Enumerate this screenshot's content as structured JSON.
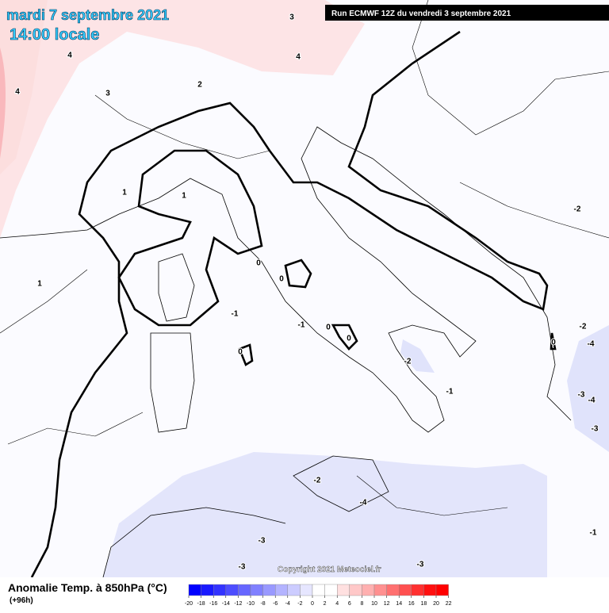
{
  "header": {
    "date": "mardi 7 septembre 2021",
    "time": "14:00 locale",
    "run": "Run ECMWF 12Z du vendredi 3 septembre 2021"
  },
  "copyright": "Copyright 2021 Meteociel.fr",
  "contour_labels": [
    3,
    4,
    4,
    4,
    3,
    2,
    1,
    1,
    1,
    0,
    0,
    -1,
    0,
    -1,
    0,
    0,
    -2,
    -1,
    -2,
    0,
    -2,
    -4,
    -3,
    -4,
    -3,
    -2,
    -4,
    -3,
    -3,
    -3,
    -1
  ],
  "legend": {
    "title": "Anomalie Temp. à 850hPa (°C)",
    "subtitle": "(+96h)",
    "ticks": [
      -20,
      -18,
      -16,
      -14,
      -12,
      -10,
      -8,
      -6,
      -4,
      -2,
      0,
      2,
      4,
      6,
      8,
      10,
      12,
      14,
      16,
      18,
      20,
      22
    ],
    "colors": [
      "#0000ff",
      "#1a1aff",
      "#3333ff",
      "#4d4dff",
      "#6666ff",
      "#8080ff",
      "#9999ff",
      "#b3b3ff",
      "#ccccff",
      "#e6e6ff",
      "#ffffff",
      "#ffffff",
      "#ffe0e0",
      "#ffc8c8",
      "#ffb0b0",
      "#ff9090",
      "#ff7070",
      "#ff5050",
      "#ff3030",
      "#ff1010",
      "#ff0000"
    ]
  }
}
